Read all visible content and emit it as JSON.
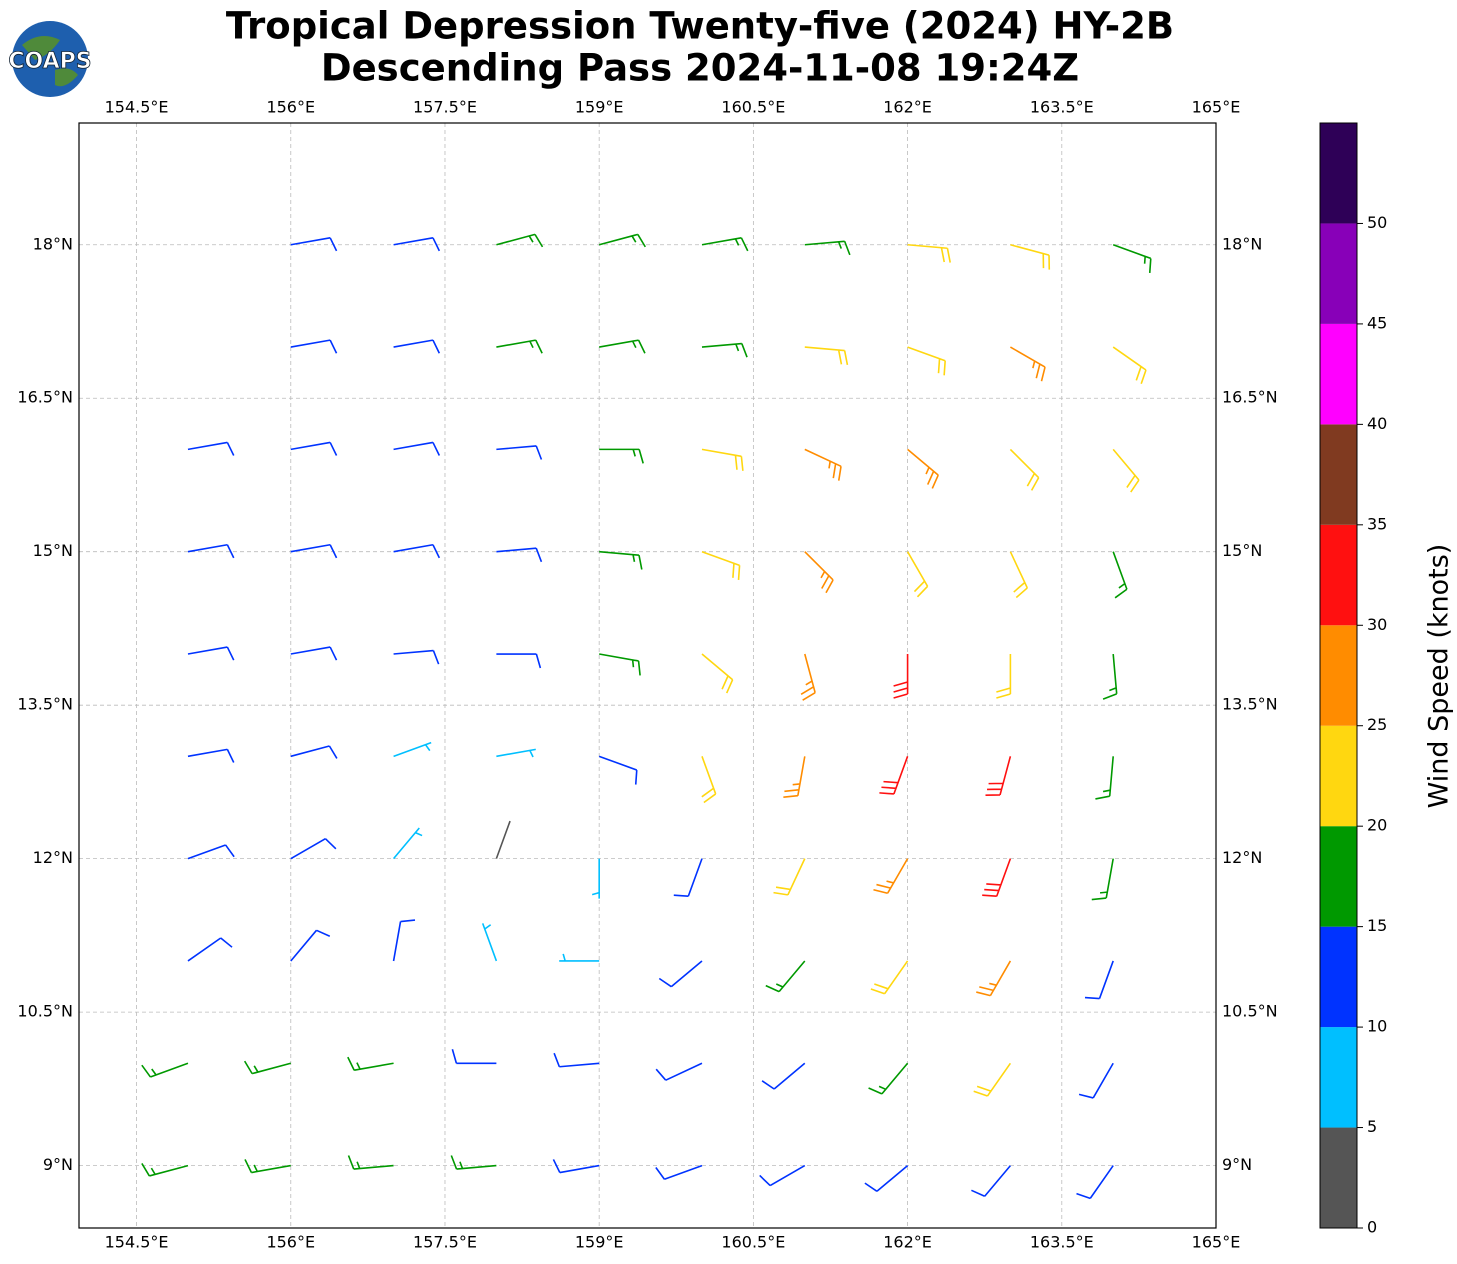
{
  "chart_data": {
    "type": "wind-barb",
    "title": [
      "Tropical Depression Twenty-five (2024) HY-2B",
      "Descending Pass 2024-11-08 19:24Z"
    ],
    "logo": "COAPS",
    "xlim": [
      153.94,
      165
    ],
    "ylim": [
      8.39,
      19.19
    ],
    "xticks": [
      {
        "value": 154.5,
        "label": "154.5°E"
      },
      {
        "value": 156,
        "label": "156°E"
      },
      {
        "value": 157.5,
        "label": "157.5°E"
      },
      {
        "value": 159,
        "label": "159°E"
      },
      {
        "value": 160.5,
        "label": "160.5°E"
      },
      {
        "value": 162,
        "label": "162°E"
      },
      {
        "value": 163.5,
        "label": "163.5°E"
      },
      {
        "value": 165,
        "label": "165°E"
      }
    ],
    "yticks": [
      {
        "value": 9,
        "label": "9°N"
      },
      {
        "value": 10.5,
        "label": "10.5°N"
      },
      {
        "value": 12,
        "label": "12°N"
      },
      {
        "value": 13.5,
        "label": "13.5°N"
      },
      {
        "value": 15,
        "label": "15°N"
      },
      {
        "value": 16.5,
        "label": "16.5°N"
      },
      {
        "value": 18,
        "label": "18°N"
      }
    ],
    "grid": true,
    "barbs": {
      "lon": [
        155,
        156,
        157,
        158,
        159,
        160,
        161,
        162,
        163,
        164
      ],
      "lat": [
        18,
        17,
        16,
        15,
        14,
        13,
        12,
        11,
        10,
        9
      ],
      "speed": [
        [
          null,
          13,
          14,
          17,
          17,
          17,
          18,
          20,
          22,
          18
        ],
        [
          null,
          12,
          13,
          15,
          17,
          18,
          20,
          22,
          25,
          23
        ],
        [
          12,
          12,
          13,
          14,
          18,
          22,
          26,
          27,
          24,
          22
        ],
        [
          11,
          12,
          13,
          14,
          19,
          23,
          27,
          24,
          21,
          18
        ],
        [
          11,
          12,
          11,
          13,
          17,
          22,
          27,
          32,
          22,
          16
        ],
        [
          11,
          11,
          8,
          9,
          12,
          20,
          26,
          32,
          30,
          17
        ],
        [
          12,
          11,
          7,
          4,
          8,
          14,
          22,
          28,
          32,
          16
        ],
        [
          12,
          13,
          11,
          8,
          7,
          12,
          16,
          22,
          26,
          14
        ],
        [
          15,
          17,
          16,
          13,
          10,
          11,
          13,
          17,
          22,
          12
        ],
        [
          16,
          17,
          17,
          15,
          12,
          11,
          11,
          12,
          13,
          10
        ]
      ],
      "direction": [
        [
          null,
          80,
          80,
          75,
          75,
          80,
          85,
          95,
          105,
          110
        ],
        [
          null,
          80,
          80,
          80,
          80,
          85,
          95,
          110,
          120,
          125
        ],
        [
          80,
          80,
          80,
          85,
          90,
          100,
          115,
          130,
          135,
          140
        ],
        [
          80,
          80,
          80,
          85,
          95,
          110,
          135,
          150,
          155,
          160
        ],
        [
          80,
          80,
          85,
          90,
          100,
          130,
          165,
          180,
          180,
          175
        ],
        [
          80,
          75,
          70,
          80,
          110,
          160,
          190,
          200,
          195,
          185
        ],
        [
          70,
          60,
          40,
          20,
          180,
          200,
          205,
          210,
          200,
          190
        ],
        [
          55,
          40,
          10,
          340,
          270,
          230,
          220,
          215,
          210,
          200
        ],
        [
          250,
          255,
          260,
          270,
          265,
          245,
          230,
          220,
          215,
          210
        ],
        [
          255,
          260,
          265,
          265,
          260,
          250,
          240,
          230,
          220,
          215
        ]
      ]
    },
    "colorbar": {
      "label": "Wind Speed (knots)",
      "lim": [
        0,
        55
      ],
      "bounds": [
        0,
        5,
        10,
        15,
        20,
        25,
        30,
        35,
        40,
        45,
        50,
        55
      ],
      "colors": [
        "#555555",
        "#00bfff",
        "#0033ff",
        "#009900",
        "#ffd710",
        "#ff8c00",
        "#ff1010",
        "#803a20",
        "#ff00ff",
        "#8800b8",
        "#2e0057"
      ],
      "ticks": [
        0,
        5,
        10,
        15,
        20,
        25,
        30,
        35,
        40,
        45,
        50
      ]
    }
  }
}
